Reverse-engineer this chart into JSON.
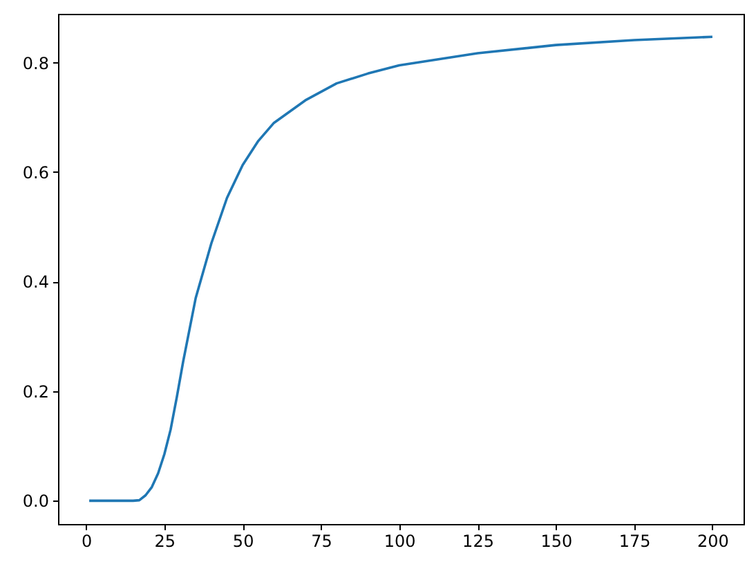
{
  "chart_data": {
    "type": "line",
    "x": [
      1,
      5,
      10,
      15,
      17,
      19,
      21,
      23,
      25,
      27,
      29,
      31,
      35,
      40,
      45,
      50,
      55,
      60,
      70,
      80,
      90,
      100,
      125,
      150,
      175,
      200
    ],
    "values": [
      0,
      0,
      0,
      0,
      0.001,
      0.01,
      0.025,
      0.05,
      0.085,
      0.13,
      0.19,
      0.254,
      0.37,
      0.47,
      0.553,
      0.613,
      0.657,
      0.69,
      0.731,
      0.762,
      0.78,
      0.795,
      0.817,
      0.832,
      0.841,
      0.847
    ],
    "color": "#1f77b4",
    "xlim": [
      -8.95,
      209.95
    ],
    "xticks": [
      0,
      25,
      50,
      75,
      100,
      125,
      150,
      175,
      200
    ],
    "ylim": [
      -0.0424,
      0.889
    ],
    "yticks": [
      {
        "value": 0,
        "label": "0.0"
      },
      0.2,
      0.4,
      0.6,
      0.8
    ]
  }
}
